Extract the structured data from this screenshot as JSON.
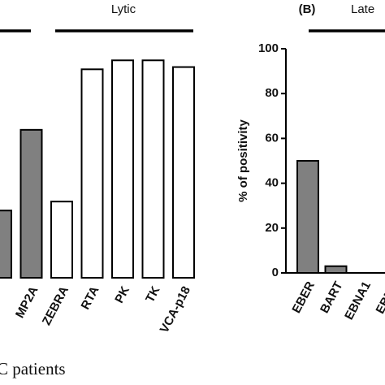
{
  "caption": "C patients",
  "chart_data": [
    {
      "type": "bar",
      "annotation": "Lytic",
      "categories": [
        null,
        "MP2A",
        "ZEBRA",
        "RTA",
        "PK",
        "TK",
        "VCA-p18"
      ],
      "values": [
        30,
        66,
        34,
        93,
        97,
        97,
        94
      ],
      "colors": [
        "#808080",
        "#808080",
        "#ffffff",
        "#ffffff",
        "#ffffff",
        "#ffffff",
        "#ffffff"
      ],
      "ylim": [
        0,
        100
      ]
    },
    {
      "type": "bar",
      "panel_label": "(B)",
      "annotation": "Late",
      "ylabel": "% of positivity",
      "categories": [
        "EBER",
        "BART",
        "EBNA1",
        "EBNA"
      ],
      "values": [
        50,
        3,
        0,
        0
      ],
      "colors": [
        "#808080",
        "#808080",
        "#808080",
        "#808080"
      ],
      "ylim": [
        0,
        100
      ],
      "yticks": [
        0,
        20,
        40,
        60,
        80,
        100
      ]
    }
  ]
}
